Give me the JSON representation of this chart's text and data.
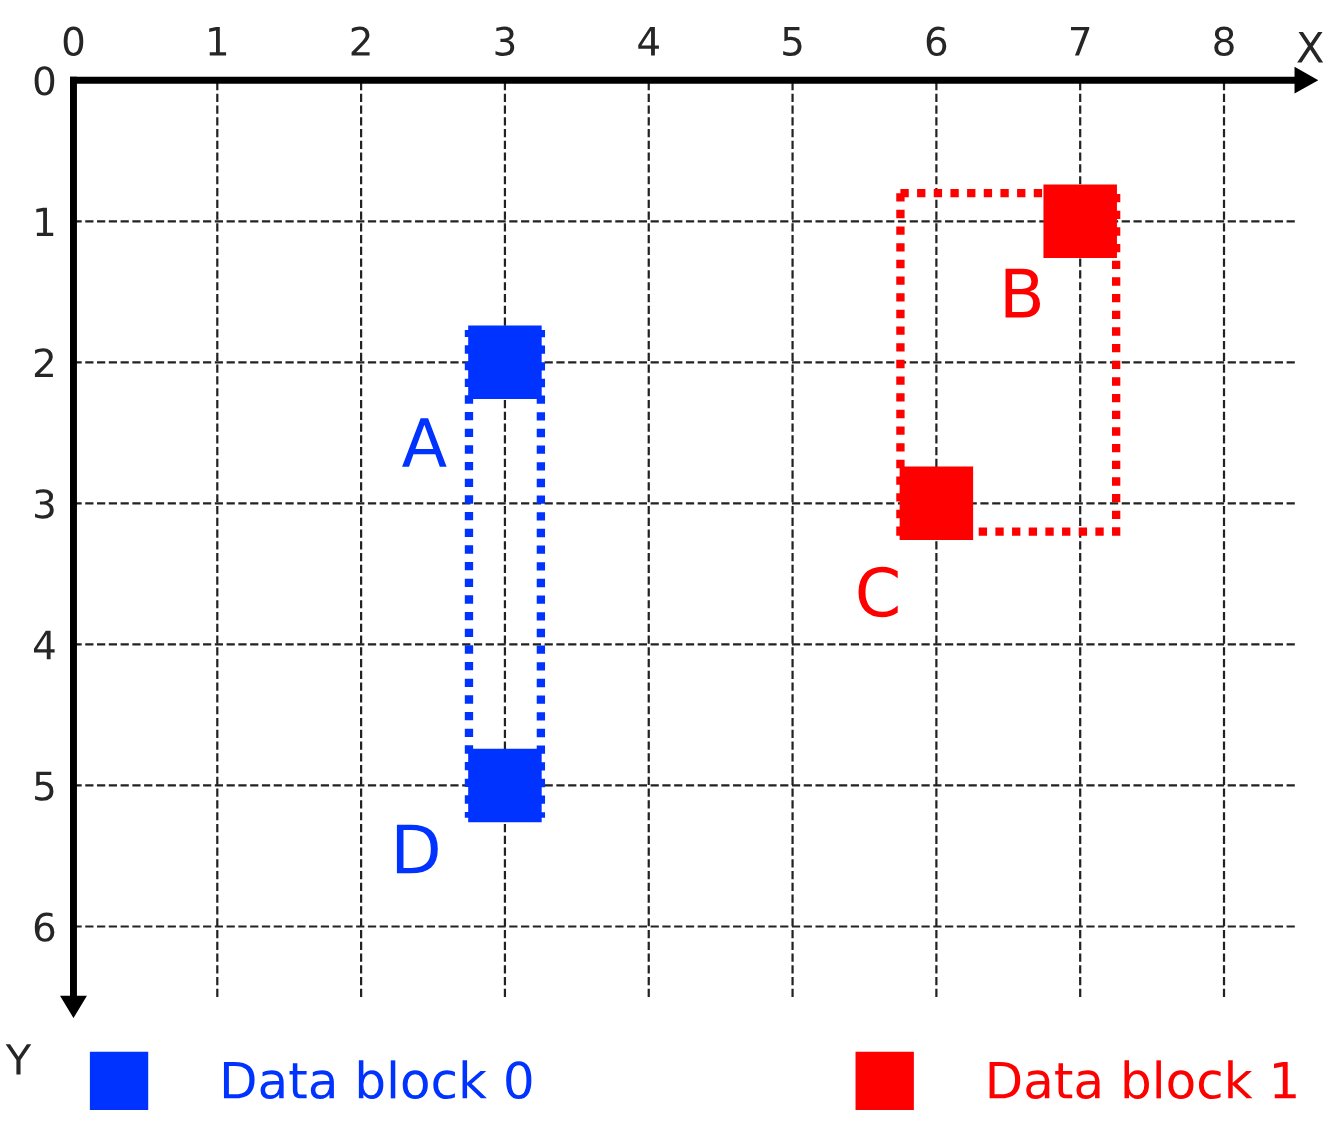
{
  "chart_data": {
    "type": "scatter",
    "xlabel": "X",
    "ylabel": "Y",
    "xlim": [
      0,
      8.5
    ],
    "ylim": [
      6.5,
      0
    ],
    "xticks": [
      0,
      1,
      2,
      3,
      4,
      5,
      6,
      7,
      8
    ],
    "yticks": [
      0,
      1,
      2,
      3,
      4,
      5,
      6
    ],
    "grid": true,
    "marker": "square",
    "legend": "bottom",
    "series": [
      {
        "name": "Data block 0",
        "color": "#0033ff",
        "x": [
          3,
          3
        ],
        "values": [
          2,
          5
        ]
      },
      {
        "name": "Data block 1",
        "color": "#ff0000",
        "x": [
          7,
          6
        ],
        "values": [
          1,
          3
        ]
      }
    ],
    "annotations": [
      {
        "text": "A",
        "x": 3,
        "y": 2
      },
      {
        "text": "D",
        "x": 3,
        "y": 5
      },
      {
        "text": "B",
        "x": 7,
        "y": 1
      },
      {
        "text": "C",
        "x": 6,
        "y": 3
      }
    ]
  }
}
